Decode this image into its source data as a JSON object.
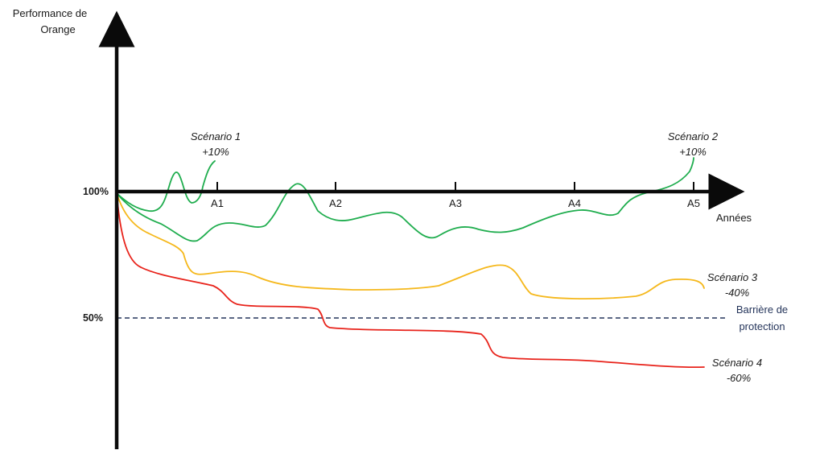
{
  "y_axis_title": [
    "Performance de",
    "Orange"
  ],
  "x_axis_title": "Années",
  "x_ticks": [
    "A1",
    "A2",
    "A3",
    "A4",
    "A5"
  ],
  "y_levels": {
    "hundred": "100%",
    "fifty": "50%"
  },
  "barrier_label": [
    "Barrière de",
    "protection"
  ],
  "scenarios": [
    {
      "name": "Scénario 1",
      "value": "+10%",
      "color": "#1fad4e"
    },
    {
      "name": "Scénario 2",
      "value": "+10%",
      "color": "#1fad4e"
    },
    {
      "name": "Scénario 3",
      "value": "-40%",
      "color": "#f5b81c"
    },
    {
      "name": "Scénario 4",
      "value": "-60%",
      "color": "#e8231b"
    }
  ],
  "colors": {
    "axis": "#0a0a0a",
    "barrier": "#24345a"
  }
}
